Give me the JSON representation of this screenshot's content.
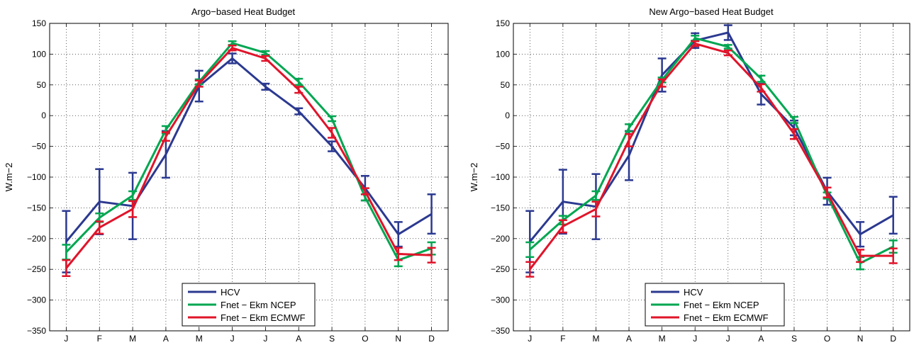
{
  "chart_data": [
    {
      "type": "line",
      "title": "Argo−based Heat Budget",
      "xlabel": "",
      "ylabel": "W.m−2",
      "categories": [
        "J",
        "F",
        "M",
        "A",
        "M",
        "J",
        "J",
        "A",
        "S",
        "O",
        "N",
        "D"
      ],
      "ylim": [
        -350,
        150
      ],
      "yticks": [
        "150",
        "100",
        "50",
        "0",
        "−50",
        "−100",
        "−150",
        "−200",
        "−250",
        "−300",
        "−350"
      ],
      "ytick_values": [
        150,
        100,
        50,
        0,
        -50,
        -100,
        -150,
        -200,
        -250,
        -300,
        -350
      ],
      "grid": "dotted",
      "legend_position": "bottom-center",
      "series": [
        {
          "name": "HCV",
          "color": "#2b3990",
          "values": [
            -205,
            -140,
            -147,
            -63,
            48,
            93,
            47,
            7,
            -50,
            -118,
            -193,
            -160
          ],
          "errors": [
            50,
            53,
            54,
            38,
            25,
            8,
            5,
            5,
            8,
            20,
            20,
            32
          ]
        },
        {
          "name": "Fnet − Ekm NCEP",
          "color": "#00a651",
          "values": [
            -222,
            -166,
            -130,
            -23,
            55,
            118,
            102,
            55,
            -5,
            -133,
            -235,
            -216
          ],
          "errors": [
            12,
            7,
            7,
            6,
            4,
            3,
            3,
            5,
            4,
            5,
            10,
            10
          ]
        },
        {
          "name": "Fnet − Ekm ECMWF",
          "color": "#e0142a",
          "values": [
            -248,
            -182,
            -152,
            -34,
            52,
            110,
            93,
            42,
            -28,
            -123,
            -225,
            -227
          ],
          "errors": [
            13,
            10,
            13,
            7,
            5,
            4,
            4,
            5,
            8,
            5,
            10,
            12
          ]
        }
      ]
    },
    {
      "type": "line",
      "title": "New Argo−based Heat Budget",
      "xlabel": "",
      "ylabel": "W.m−2",
      "categories": [
        "J",
        "F",
        "M",
        "A",
        "M",
        "J",
        "J",
        "A",
        "S",
        "O",
        "N",
        "D"
      ],
      "ylim": [
        -350,
        150
      ],
      "yticks": [
        "150",
        "100",
        "50",
        "0",
        "−50",
        "−100",
        "−150",
        "−200",
        "−250",
        "−300",
        "−350"
      ],
      "ytick_values": [
        150,
        100,
        50,
        0,
        -50,
        -100,
        -150,
        -200,
        -250,
        -300,
        -350
      ],
      "grid": "dotted",
      "legend_position": "bottom-center",
      "series": [
        {
          "name": "HCV",
          "color": "#2b3990",
          "values": [
            -205,
            -140,
            -148,
            -65,
            66,
            122,
            135,
            35,
            -20,
            -123,
            -193,
            -162
          ],
          "errors": [
            50,
            52,
            53,
            40,
            27,
            12,
            12,
            17,
            12,
            22,
            20,
            30
          ]
        },
        {
          "name": "Fnet − Ekm NCEP",
          "color": "#00a651",
          "values": [
            -218,
            -170,
            -130,
            -20,
            58,
            126,
            112,
            60,
            -7,
            -130,
            -240,
            -213
          ],
          "errors": [
            12,
            7,
            7,
            6,
            4,
            4,
            3,
            5,
            5,
            5,
            10,
            10
          ]
        },
        {
          "name": "Fnet − Ekm ECMWF",
          "color": "#e0142a",
          "values": [
            -250,
            -180,
            -152,
            -40,
            53,
            117,
            102,
            45,
            -30,
            -125,
            -228,
            -228
          ],
          "errors": [
            12,
            10,
            12,
            10,
            6,
            4,
            4,
            6,
            8,
            8,
            10,
            12
          ]
        }
      ]
    }
  ]
}
